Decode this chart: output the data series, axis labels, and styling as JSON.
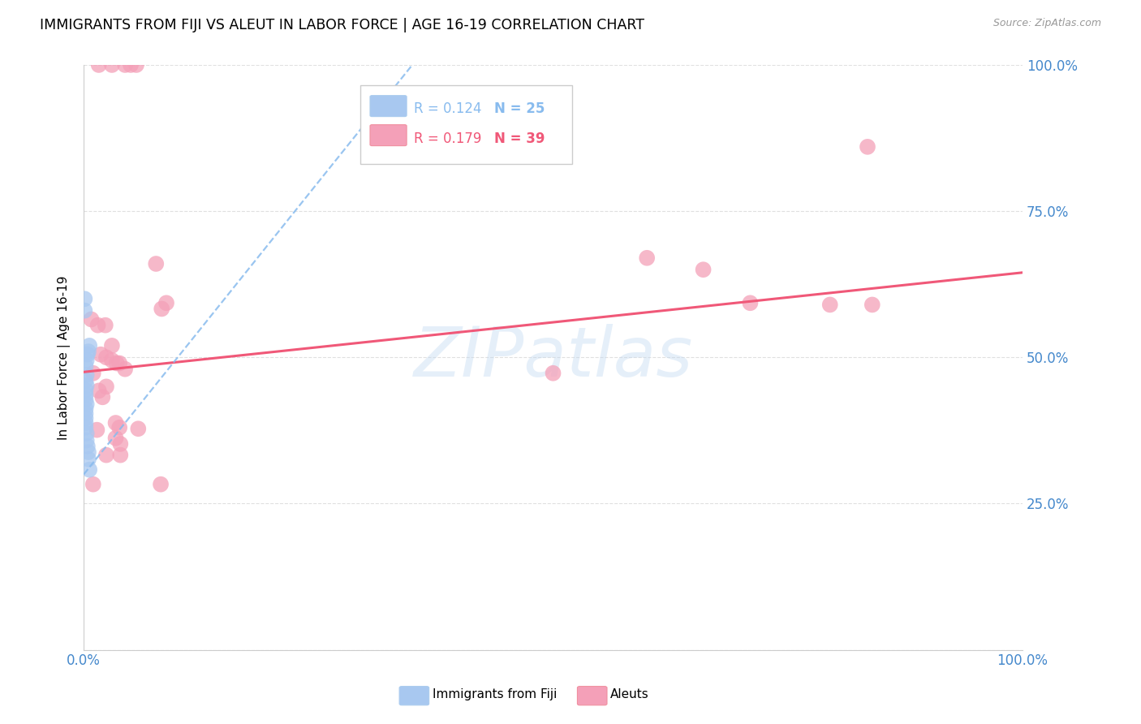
{
  "title": "IMMIGRANTS FROM FIJI VS ALEUT IN LABOR FORCE | AGE 16-19 CORRELATION CHART",
  "source": "Source: ZipAtlas.com",
  "ylabel": "In Labor Force | Age 16-19",
  "legend_fiji": "Immigrants from Fiji",
  "legend_aleut": "Aleuts",
  "fiji_R": "R = 0.124",
  "fiji_N": "N = 25",
  "aleut_R": "R = 0.179",
  "aleut_N": "N = 39",
  "fiji_color": "#a8c8f0",
  "aleut_color": "#f4a0b8",
  "fiji_line_color": "#88bbee",
  "aleut_line_color": "#f05878",
  "fiji_scatter": [
    [
      0.001,
      0.6
    ],
    [
      0.001,
      0.58
    ],
    [
      0.006,
      0.52
    ],
    [
      0.005,
      0.51
    ],
    [
      0.004,
      0.505
    ],
    [
      0.003,
      0.495
    ],
    [
      0.002,
      0.485
    ],
    [
      0.003,
      0.47
    ],
    [
      0.002,
      0.46
    ],
    [
      0.003,
      0.452
    ],
    [
      0.002,
      0.444
    ],
    [
      0.002,
      0.436
    ],
    [
      0.002,
      0.428
    ],
    [
      0.003,
      0.42
    ],
    [
      0.002,
      0.412
    ],
    [
      0.002,
      0.404
    ],
    [
      0.002,
      0.396
    ],
    [
      0.002,
      0.388
    ],
    [
      0.002,
      0.38
    ],
    [
      0.003,
      0.37
    ],
    [
      0.003,
      0.358
    ],
    [
      0.004,
      0.348
    ],
    [
      0.005,
      0.338
    ],
    [
      0.005,
      0.326
    ],
    [
      0.006,
      0.308
    ]
  ],
  "aleut_scatter": [
    [
      0.016,
      1.0
    ],
    [
      0.03,
      1.0
    ],
    [
      0.044,
      1.0
    ],
    [
      0.05,
      1.0
    ],
    [
      0.056,
      1.0
    ],
    [
      0.008,
      0.565
    ],
    [
      0.015,
      0.555
    ],
    [
      0.023,
      0.555
    ],
    [
      0.03,
      0.52
    ],
    [
      0.018,
      0.505
    ],
    [
      0.024,
      0.5
    ],
    [
      0.03,
      0.495
    ],
    [
      0.035,
      0.49
    ],
    [
      0.038,
      0.49
    ],
    [
      0.044,
      0.48
    ],
    [
      0.01,
      0.473
    ],
    [
      0.024,
      0.45
    ],
    [
      0.016,
      0.443
    ],
    [
      0.02,
      0.432
    ],
    [
      0.034,
      0.388
    ],
    [
      0.038,
      0.38
    ],
    [
      0.058,
      0.378
    ],
    [
      0.014,
      0.376
    ],
    [
      0.034,
      0.362
    ],
    [
      0.039,
      0.352
    ],
    [
      0.024,
      0.333
    ],
    [
      0.039,
      0.333
    ],
    [
      0.01,
      0.283
    ],
    [
      0.082,
      0.283
    ],
    [
      0.077,
      0.66
    ],
    [
      0.088,
      0.593
    ],
    [
      0.083,
      0.583
    ],
    [
      0.5,
      0.473
    ],
    [
      0.6,
      0.67
    ],
    [
      0.66,
      0.65
    ],
    [
      0.71,
      0.593
    ],
    [
      0.795,
      0.59
    ],
    [
      0.835,
      0.86
    ],
    [
      0.84,
      0.59
    ]
  ],
  "watermark": "ZIPatlas",
  "xlim": [
    0.0,
    1.0
  ],
  "ylim": [
    0.0,
    1.0
  ],
  "yticks": [
    0.0,
    0.25,
    0.5,
    0.75,
    1.0
  ],
  "ytick_labels_right": [
    "",
    "25.0%",
    "50.0%",
    "75.0%",
    "100.0%"
  ],
  "xticks": [
    0.0,
    0.25,
    0.5,
    0.75,
    1.0
  ],
  "xtick_labels": [
    "0.0%",
    "",
    "",
    "",
    "100.0%"
  ],
  "grid_color": "#e0e0e0",
  "background_color": "#ffffff",
  "tick_color": "#4488cc",
  "title_fontsize": 12.5,
  "axis_label_fontsize": 11,
  "tick_fontsize": 12,
  "fiji_line_x_start": 0.0,
  "fiji_line_x_end": 0.4,
  "aleut_line_x_start": 0.0,
  "aleut_line_x_end": 1.0,
  "aleut_line_y_start": 0.475,
  "aleut_line_y_end": 0.645
}
